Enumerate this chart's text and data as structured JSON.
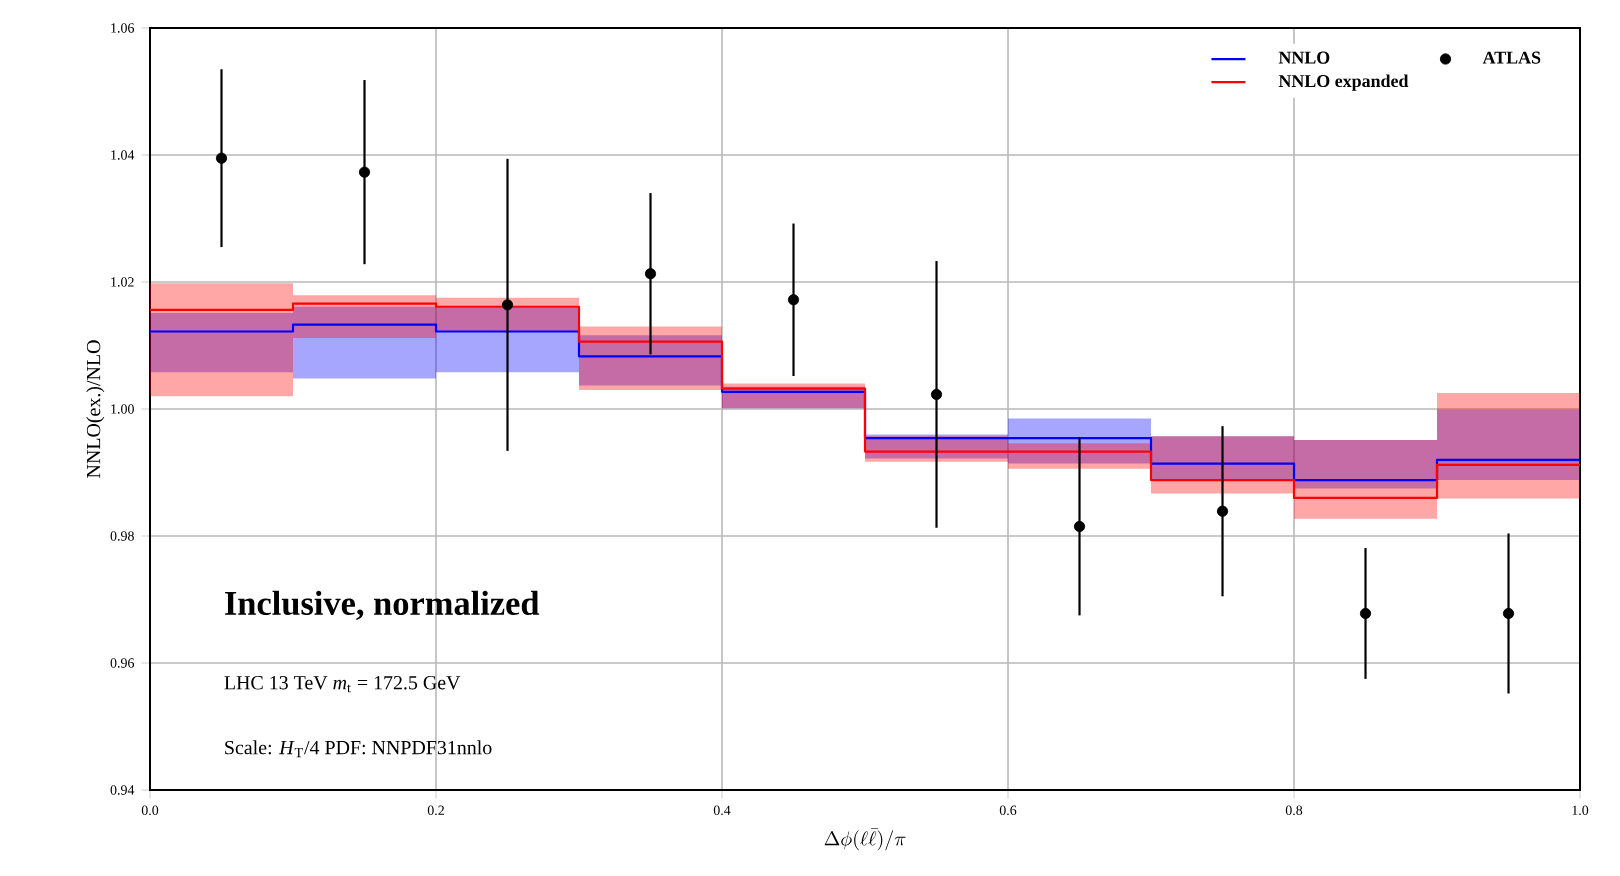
{
  "chart_data": {
    "type": "step",
    "xlabel": "\\Delta\\phi(\\ell\\bar{\\ell})/\\pi",
    "ylabel": "NNLO(ex.)/NLO",
    "x": [
      0.0,
      0.1,
      0.2,
      0.3,
      0.4,
      0.5,
      0.6,
      0.7,
      0.8,
      0.9,
      1.0
    ],
    "series": [
      {
        "name": "NNLO",
        "color": "#0000ff",
        "values": [
          1.0122,
          1.0133,
          1.0122,
          1.0083,
          1.0027,
          0.9954,
          0.9954,
          0.9914,
          0.9888,
          0.992,
          0.992
        ],
        "lower": [
          1.0058,
          1.0048,
          1.0058,
          1.0037,
          1.0001,
          0.9922,
          0.9914,
          0.9888,
          0.9875,
          0.9888,
          0.9888
        ],
        "upper": [
          1.0151,
          1.0161,
          1.016,
          1.0116,
          1.0035,
          0.996,
          0.9985,
          0.9957,
          0.9951,
          0.9999,
          0.9999
        ]
      },
      {
        "name": "NNLO expanded",
        "color": "#ff0000",
        "values": [
          1.0156,
          1.0166,
          1.0161,
          1.0106,
          1.0032,
          0.9933,
          0.9933,
          0.9888,
          0.986,
          0.9912,
          0.9912
        ],
        "lower": [
          1.002,
          1.0112,
          1.0122,
          1.003,
          1.0001,
          0.9917,
          0.9906,
          0.9867,
          0.9827,
          0.9859,
          0.9859
        ],
        "upper": [
          1.0198,
          1.0179,
          1.0175,
          1.013,
          1.004,
          0.9957,
          0.9946,
          0.9957,
          0.9951,
          1.0025,
          1.0025
        ]
      },
      {
        "name": "ATLAS",
        "type": "scatter",
        "color": "#000000",
        "marker": "circle",
        "x": [
          0.05,
          0.15,
          0.25,
          0.35,
          0.45,
          0.55,
          0.65,
          0.75,
          0.85,
          0.95
        ],
        "values": [
          1.0395,
          1.0373,
          1.0164,
          1.0213,
          1.0172,
          1.0023,
          0.9815,
          0.9839,
          0.9678,
          0.9678
        ],
        "errors": [
          0.014,
          0.0145,
          0.023,
          0.0127,
          0.012,
          0.021,
          0.014,
          0.0134,
          0.0103,
          0.0126
        ]
      }
    ],
    "xlim": [
      0.0,
      1.0
    ],
    "ylim": [
      0.94,
      1.06
    ],
    "xticks": [
      {
        "value": 0.0,
        "label": "0.0"
      },
      0.2,
      0.4,
      0.6,
      0.8,
      {
        "value": 1.0,
        "label": "1.0"
      }
    ],
    "yticks": [
      0.94,
      0.96,
      0.98,
      {
        "value": 1.0,
        "label": "1.00"
      },
      1.02,
      1.04,
      1.06
    ],
    "grid": true,
    "legend": "top right",
    "annotations": [
      "Inclusive, normalized",
      "LHC 13 TeV *m*$_{t}$ = 172.5 GeV",
      "Scale: *H*$_{T}$/4 PDF: NNPDF31nnlo"
    ]
  }
}
